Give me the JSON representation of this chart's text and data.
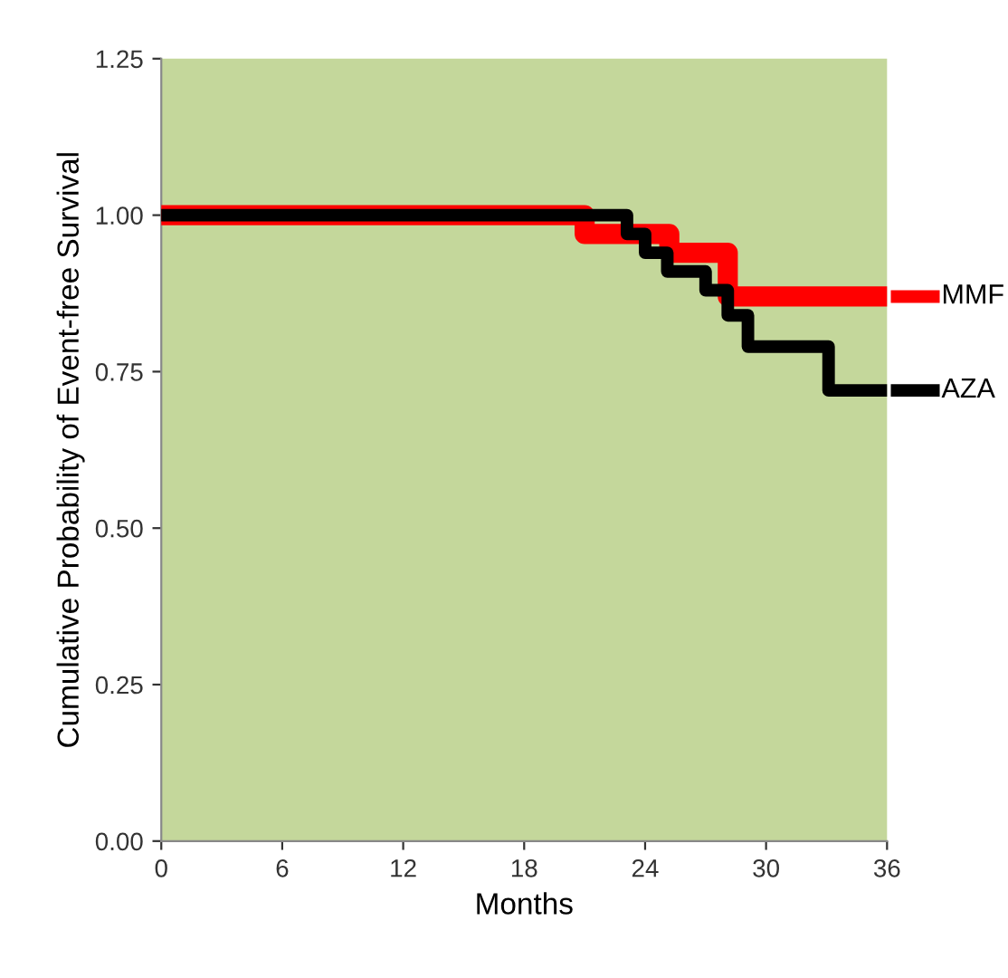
{
  "chart_data": {
    "type": "step",
    "xlabel": "Months",
    "ylabel": "Cumulative Probability of Event-free Survival",
    "xlim": [
      0,
      36
    ],
    "xticks": [
      0,
      6,
      12,
      18,
      24,
      30,
      36
    ],
    "ylim": [
      0,
      1.25
    ],
    "yticks": [
      {
        "value": 0,
        "label": "0.00"
      },
      {
        "value": 0.25,
        "label": "0.25"
      },
      {
        "value": 0.5,
        "label": "0.50"
      },
      {
        "value": 0.75,
        "label": "0.75"
      },
      {
        "value": 1,
        "label": "1.00"
      },
      {
        "value": 1.25,
        "label": "1.25"
      }
    ],
    "grid": false,
    "legend": "right",
    "marker": "none",
    "line_style": "solid",
    "series": [
      {
        "name": "MMF",
        "color": "#ff0000",
        "x": [
          0,
          21.0,
          25.2,
          28.1,
          36
        ],
        "values": [
          1.0,
          0.97,
          0.94,
          0.87,
          0.87
        ]
      },
      {
        "name": "AZA",
        "color": "#000000",
        "x": [
          0,
          23.1,
          24.0,
          25.1,
          27.0,
          28.1,
          29.1,
          33.1,
          36
        ],
        "values": [
          1.0,
          0.97,
          0.94,
          0.91,
          0.88,
          0.84,
          0.79,
          0.72,
          0.72
        ]
      }
    ]
  }
}
